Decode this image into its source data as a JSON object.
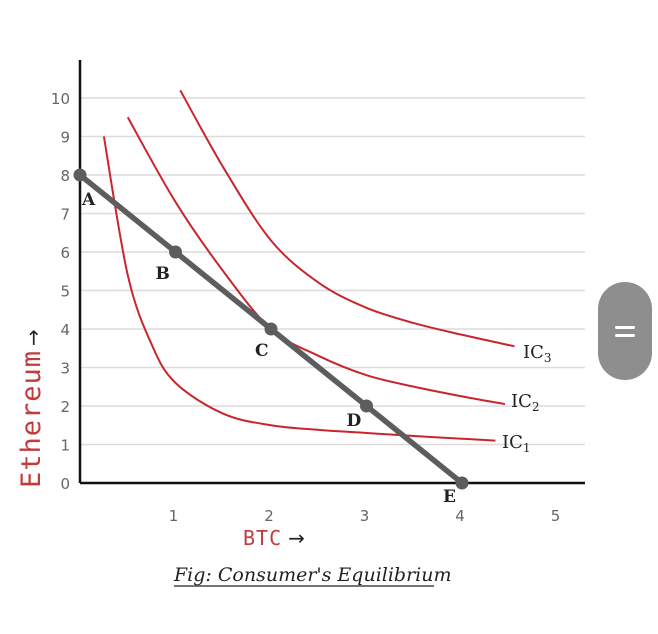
{
  "chart_data": {
    "type": "line",
    "xlabel": "BTC",
    "ylabel": "Ethereum",
    "xlim": [
      0,
      5
    ],
    "ylim": [
      0,
      10
    ],
    "x_ticks": [
      "1",
      "2",
      "3",
      "4",
      "5"
    ],
    "y_ticks": [
      "0",
      "1",
      "2",
      "3",
      "4",
      "5",
      "6",
      "7",
      "8",
      "9",
      "10"
    ],
    "grid": true,
    "series": [
      {
        "name": "IC1",
        "x": [
          0.25,
          0.5,
          0.75,
          1.0,
          1.5,
          2.0,
          2.5,
          3.0,
          3.5,
          4.0,
          4.35
        ],
        "y": [
          9.0,
          5.4,
          3.6,
          2.6,
          1.8,
          1.5,
          1.38,
          1.3,
          1.22,
          1.15,
          1.1
        ]
      },
      {
        "name": "IC2",
        "x": [
          0.5,
          1.0,
          1.5,
          2.0,
          2.5,
          3.0,
          3.5,
          4.0,
          4.45
        ],
        "y": [
          9.5,
          7.3,
          5.5,
          4.0,
          3.3,
          2.8,
          2.5,
          2.25,
          2.05
        ]
      },
      {
        "name": "IC3",
        "x": [
          1.05,
          1.5,
          2.0,
          2.5,
          3.0,
          3.5,
          4.0,
          4.55
        ],
        "y": [
          10.2,
          8.2,
          6.3,
          5.2,
          4.55,
          4.15,
          3.85,
          3.55
        ]
      }
    ],
    "budget_line": {
      "points": [
        {
          "label": "A",
          "x": 0,
          "y": 8
        },
        {
          "label": "B",
          "x": 1,
          "y": 6
        },
        {
          "label": "C",
          "x": 2,
          "y": 4
        },
        {
          "label": "D",
          "x": 3,
          "y": 2
        },
        {
          "label": "E",
          "x": 4,
          "y": 0
        }
      ]
    },
    "curve_labels": [
      {
        "base": "IC",
        "sub": "3"
      },
      {
        "base": "IC",
        "sub": "2"
      },
      {
        "base": "IC",
        "sub": "1"
      }
    ],
    "arrow_symbol": "→",
    "caption": "Fig: Consumer's Equilibrium",
    "colors": {
      "curves": "#c8262c",
      "budget": "#5d5d5d",
      "grid": "#dcdcdc",
      "axis": "#111111"
    }
  },
  "scrollbar": {
    "icon": "drag-handle-icon"
  }
}
